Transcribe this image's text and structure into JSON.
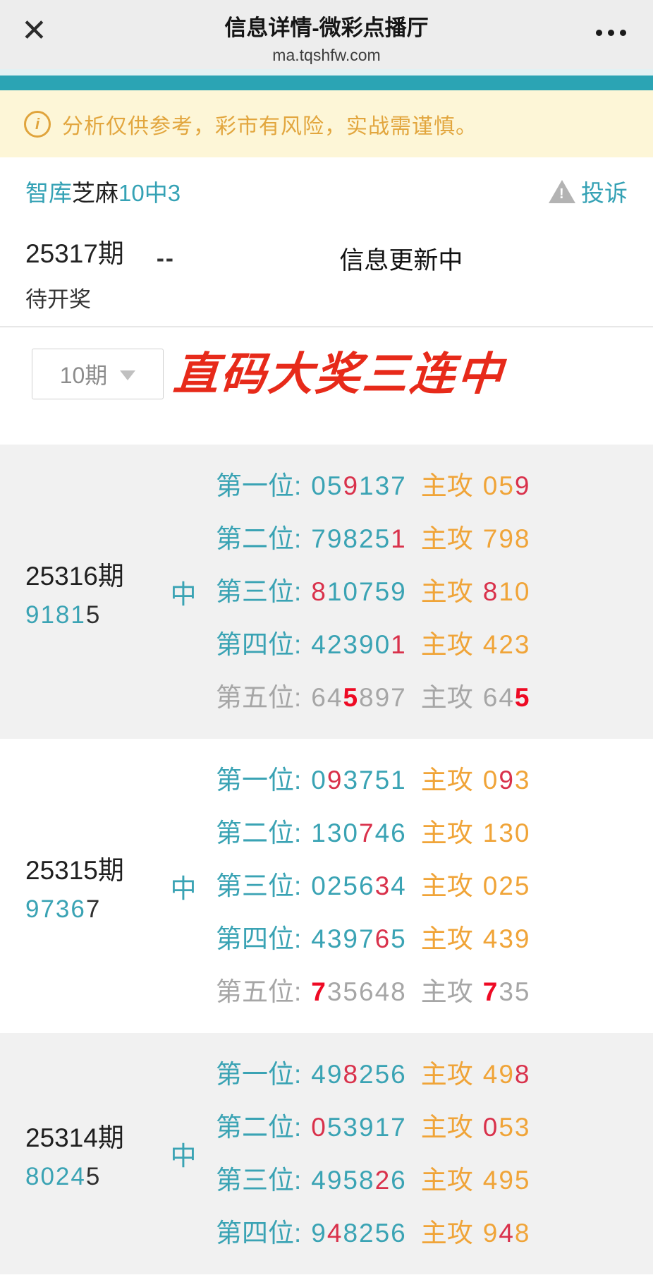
{
  "header": {
    "title": "信息详情-微彩点播厅",
    "url": "ma.tqshfw.com",
    "close_glyph": "✕"
  },
  "notice": {
    "icon_glyph": "i",
    "text": "分析仅供参考，彩市有风险，实战需谨慎。"
  },
  "source": {
    "title_parts": [
      {
        "t": "智库",
        "c": "teal"
      },
      {
        "t": "芝麻",
        "c": "dark"
      },
      {
        "t": "10中3",
        "c": "teal"
      }
    ],
    "report_label": "投诉",
    "warn_glyph": "!",
    "current": {
      "period": "25317期",
      "status": "待开奖",
      "dash": "--",
      "updating": "信息更新中"
    }
  },
  "filter": {
    "dropdown_label": "10期",
    "slogan": "直码大奖三连中"
  },
  "colors": {
    "teal": "#3aa3b4",
    "orange": "#f0a438",
    "red": "#d9314b",
    "red_bold": "#ee0a24",
    "gray": "#a6a6a6",
    "topbar": "#2ba4b4",
    "slogan_red": "#e72a1a",
    "notice_bg": "#fdf6d7"
  },
  "blocks": [
    {
      "period": "25316期",
      "number_segments": [
        {
          "t": "9181",
          "c": "teal"
        },
        {
          "t": "5",
          "c": "dark"
        }
      ],
      "hit_label": "中",
      "tone": "gray",
      "rows": [
        {
          "label": "第一位:",
          "label_c": "teal",
          "digits": [
            {
              "t": "05",
              "c": "teal"
            },
            {
              "t": "9",
              "c": "red"
            },
            {
              "t": "137",
              "c": "teal"
            }
          ],
          "attack": "主攻",
          "attack_c": "orange",
          "attack_digits": [
            {
              "t": "05",
              "c": "orange"
            },
            {
              "t": "9",
              "c": "red"
            }
          ]
        },
        {
          "label": "第二位:",
          "label_c": "teal",
          "digits": [
            {
              "t": "79825",
              "c": "teal"
            },
            {
              "t": "1",
              "c": "red"
            }
          ],
          "attack": "主攻",
          "attack_c": "orange",
          "attack_digits": [
            {
              "t": "798",
              "c": "orange"
            }
          ]
        },
        {
          "label": "第三位:",
          "label_c": "teal",
          "digits": [
            {
              "t": "8",
              "c": "red"
            },
            {
              "t": "10759",
              "c": "teal"
            }
          ],
          "attack": "主攻",
          "attack_c": "orange",
          "attack_digits": [
            {
              "t": "8",
              "c": "red"
            },
            {
              "t": "10",
              "c": "orange"
            }
          ]
        },
        {
          "label": "第四位:",
          "label_c": "teal",
          "digits": [
            {
              "t": "42390",
              "c": "teal"
            },
            {
              "t": "1",
              "c": "red"
            }
          ],
          "attack": "主攻",
          "attack_c": "orange",
          "attack_digits": [
            {
              "t": "423",
              "c": "orange"
            }
          ]
        },
        {
          "label": "第五位:",
          "label_c": "gray",
          "digits": [
            {
              "t": "64",
              "c": "gray"
            },
            {
              "t": "5",
              "c": "redbold"
            },
            {
              "t": "897",
              "c": "gray"
            }
          ],
          "attack": "主攻",
          "attack_c": "gray",
          "attack_digits": [
            {
              "t": "64",
              "c": "gray"
            },
            {
              "t": "5",
              "c": "redbold"
            }
          ]
        }
      ]
    },
    {
      "period": "25315期",
      "number_segments": [
        {
          "t": "9736",
          "c": "teal"
        },
        {
          "t": "7",
          "c": "dark"
        }
      ],
      "hit_label": "中",
      "tone": "white",
      "rows": [
        {
          "label": "第一位:",
          "label_c": "teal",
          "digits": [
            {
              "t": "0",
              "c": "teal"
            },
            {
              "t": "9",
              "c": "red"
            },
            {
              "t": "3751",
              "c": "teal"
            }
          ],
          "attack": "主攻",
          "attack_c": "orange",
          "attack_digits": [
            {
              "t": "0",
              "c": "orange"
            },
            {
              "t": "9",
              "c": "red"
            },
            {
              "t": "3",
              "c": "orange"
            }
          ]
        },
        {
          "label": "第二位:",
          "label_c": "teal",
          "digits": [
            {
              "t": "130",
              "c": "teal"
            },
            {
              "t": "7",
              "c": "red"
            },
            {
              "t": "46",
              "c": "teal"
            }
          ],
          "attack": "主攻",
          "attack_c": "orange",
          "attack_digits": [
            {
              "t": "130",
              "c": "orange"
            }
          ]
        },
        {
          "label": "第三位:",
          "label_c": "teal",
          "digits": [
            {
              "t": "0256",
              "c": "teal"
            },
            {
              "t": "3",
              "c": "red"
            },
            {
              "t": "4",
              "c": "teal"
            }
          ],
          "attack": "主攻",
          "attack_c": "orange",
          "attack_digits": [
            {
              "t": "025",
              "c": "orange"
            }
          ]
        },
        {
          "label": "第四位:",
          "label_c": "teal",
          "digits": [
            {
              "t": "4397",
              "c": "teal"
            },
            {
              "t": "6",
              "c": "red"
            },
            {
              "t": "5",
              "c": "teal"
            }
          ],
          "attack": "主攻",
          "attack_c": "orange",
          "attack_digits": [
            {
              "t": "439",
              "c": "orange"
            }
          ]
        },
        {
          "label": "第五位:",
          "label_c": "gray",
          "digits": [
            {
              "t": "7",
              "c": "redbold"
            },
            {
              "t": "35648",
              "c": "gray"
            }
          ],
          "attack": "主攻",
          "attack_c": "gray",
          "attack_digits": [
            {
              "t": "7",
              "c": "redbold"
            },
            {
              "t": "35",
              "c": "gray"
            }
          ]
        }
      ]
    },
    {
      "period": "25314期",
      "number_segments": [
        {
          "t": "8024",
          "c": "teal"
        },
        {
          "t": "5",
          "c": "dark"
        }
      ],
      "hit_label": "中",
      "tone": "gray",
      "rows": [
        {
          "label": "第一位:",
          "label_c": "teal",
          "digits": [
            {
              "t": "49",
              "c": "teal"
            },
            {
              "t": "8",
              "c": "red"
            },
            {
              "t": "256",
              "c": "teal"
            }
          ],
          "attack": "主攻",
          "attack_c": "orange",
          "attack_digits": [
            {
              "t": "49",
              "c": "orange"
            },
            {
              "t": "8",
              "c": "red"
            }
          ]
        },
        {
          "label": "第二位:",
          "label_c": "teal",
          "digits": [
            {
              "t": "0",
              "c": "red"
            },
            {
              "t": "53917",
              "c": "teal"
            }
          ],
          "attack": "主攻",
          "attack_c": "orange",
          "attack_digits": [
            {
              "t": "0",
              "c": "red"
            },
            {
              "t": "53",
              "c": "orange"
            }
          ]
        },
        {
          "label": "第三位:",
          "label_c": "teal",
          "digits": [
            {
              "t": "4958",
              "c": "teal"
            },
            {
              "t": "2",
              "c": "red"
            },
            {
              "t": "6",
              "c": "teal"
            }
          ],
          "attack": "主攻",
          "attack_c": "orange",
          "attack_digits": [
            {
              "t": "495",
              "c": "orange"
            }
          ]
        },
        {
          "label": "第四位:",
          "label_c": "teal",
          "digits": [
            {
              "t": "9",
              "c": "teal"
            },
            {
              "t": "4",
              "c": "red"
            },
            {
              "t": "8256",
              "c": "teal"
            }
          ],
          "attack": "主攻",
          "attack_c": "orange",
          "attack_digits": [
            {
              "t": "9",
              "c": "orange"
            },
            {
              "t": "4",
              "c": "red"
            },
            {
              "t": "8",
              "c": "orange"
            }
          ]
        }
      ]
    }
  ]
}
